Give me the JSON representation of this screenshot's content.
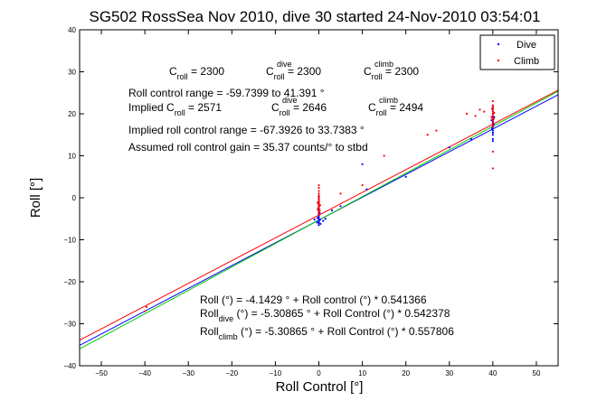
{
  "chart_data": {
    "type": "scatter",
    "title": "SG502 RossSea Nov 2010, dive 30 started 24-Nov-2010 03:54:01",
    "xlabel": "Roll Control [°]",
    "ylabel": "Roll [°]",
    "xlim": [
      -55,
      55
    ],
    "ylim": [
      -40,
      40
    ],
    "xticks": [
      -50,
      -40,
      -30,
      -20,
      -10,
      0,
      10,
      20,
      30,
      40,
      50
    ],
    "yticks": [
      -40,
      -30,
      -20,
      -10,
      0,
      10,
      20,
      30,
      40
    ],
    "grid": false,
    "legend_position": "top-right",
    "legend": [
      {
        "label": "Dive",
        "color": "#0000ff"
      },
      {
        "label": "Climb",
        "color": "#ff0000"
      }
    ],
    "series": [
      {
        "name": "Dive",
        "color": "#0000ff",
        "points": [
          [
            0,
            -6.5
          ],
          [
            0,
            -6
          ],
          [
            0,
            -5.8
          ],
          [
            0,
            -5.5
          ],
          [
            0,
            -5
          ],
          [
            0,
            -4.6
          ],
          [
            0,
            -4.2
          ],
          [
            0,
            -3.8
          ],
          [
            0,
            -3.4
          ],
          [
            0,
            -3
          ],
          [
            0,
            -2.5
          ],
          [
            0,
            -2
          ],
          [
            0,
            -1.5
          ],
          [
            0,
            -1
          ],
          [
            0,
            -0.4
          ],
          [
            0,
            0.2
          ],
          [
            0.3,
            -5.2
          ],
          [
            -0.3,
            -4.8
          ],
          [
            0.2,
            -3.6
          ],
          [
            -0.2,
            -2.8
          ],
          [
            0.4,
            -6.2
          ],
          [
            -0.4,
            -5.9
          ],
          [
            1,
            -5.5
          ],
          [
            1.5,
            -5
          ],
          [
            -1,
            -5.2
          ],
          [
            40,
            15
          ],
          [
            40,
            15.5
          ],
          [
            40,
            16
          ],
          [
            40,
            16.5
          ],
          [
            40,
            17
          ],
          [
            40,
            17.4
          ],
          [
            40,
            17.8
          ],
          [
            40,
            18.2
          ],
          [
            40,
            18.6
          ],
          [
            40,
            19
          ],
          [
            40,
            19.5
          ],
          [
            40,
            20
          ],
          [
            40,
            20.5
          ],
          [
            40,
            21
          ],
          [
            40,
            21.5
          ],
          [
            40,
            22
          ],
          [
            39.8,
            16.5
          ],
          [
            40.2,
            17.5
          ],
          [
            39.7,
            18.5
          ],
          [
            40.3,
            19.2
          ],
          [
            40,
            14
          ],
          [
            40,
            13.5
          ],
          [
            3,
            -3
          ],
          [
            5,
            -2
          ],
          [
            10,
            8
          ],
          [
            11,
            2
          ],
          [
            30,
            12
          ],
          [
            35,
            14
          ],
          [
            20,
            5
          ]
        ]
      },
      {
        "name": "Climb",
        "color": "#ff0000",
        "points": [
          [
            0,
            -4
          ],
          [
            0,
            -3.6
          ],
          [
            0,
            -3.2
          ],
          [
            0,
            -2.8
          ],
          [
            0,
            -2.4
          ],
          [
            0,
            -2
          ],
          [
            0,
            -1.6
          ],
          [
            0,
            -1.2
          ],
          [
            0,
            -0.8
          ],
          [
            0,
            -0.4
          ],
          [
            0,
            0
          ],
          [
            0,
            0.5
          ],
          [
            0,
            1
          ],
          [
            0,
            1.6
          ],
          [
            0,
            2.4
          ],
          [
            0,
            3
          ],
          [
            0.2,
            -3
          ],
          [
            -0.2,
            -2.5
          ],
          [
            0.3,
            -1.8
          ],
          [
            -0.3,
            -1.2
          ],
          [
            40,
            17
          ],
          [
            40,
            17.5
          ],
          [
            40,
            18
          ],
          [
            40,
            18.5
          ],
          [
            40,
            19
          ],
          [
            40,
            19.5
          ],
          [
            40,
            20
          ],
          [
            40,
            20.5
          ],
          [
            40,
            21
          ],
          [
            40,
            21.5
          ],
          [
            40,
            22
          ],
          [
            40,
            23
          ],
          [
            39.7,
            19.2
          ],
          [
            40.3,
            20.2
          ],
          [
            39.8,
            21.2
          ],
          [
            40.2,
            18.8
          ],
          [
            40,
            7
          ],
          [
            40,
            11
          ],
          [
            38,
            20.5
          ],
          [
            37,
            21
          ],
          [
            36,
            19.5
          ],
          [
            34,
            20
          ],
          [
            27,
            16
          ],
          [
            25,
            15
          ],
          [
            15,
            10
          ],
          [
            10,
            3
          ],
          [
            5,
            1
          ],
          [
            -40,
            -27
          ],
          [
            -39.6,
            -26
          ]
        ]
      }
    ],
    "fit_lines": [
      {
        "color": "#ff0000",
        "intercept": -4.1429,
        "slope": 0.541366
      },
      {
        "color": "#0000ff",
        "intercept": -5.30865,
        "slope": 0.542378
      },
      {
        "color": "#00cc00",
        "intercept": -5.30865,
        "slope": 0.557806
      }
    ],
    "annotations": {
      "line1": {
        "c_roll_prefix": "C",
        "c_roll_sub": "roll",
        "c_roll_value": " = 2300",
        "c_dive_prefix": "C",
        "c_dive_sup": "dive",
        "c_dive_sub": "roll",
        "c_dive_value": " = 2300",
        "c_climb_prefix": "C",
        "c_climb_sup": "climb",
        "c_climb_sub": "roll",
        "c_climb_value": " = 2300"
      },
      "range": "Roll control range = -59.7399 to 41.391 °",
      "implied": {
        "prefix": "Implied C",
        "sub": "roll",
        "value": " = 2571",
        "c_dive_prefix": "C",
        "c_dive_sup": "dive",
        "c_dive_sub": "roll",
        "c_dive_value": " = 2646",
        "c_climb_prefix": "C",
        "c_climb_sup": "climb",
        "c_climb_sub": "roll",
        "c_climb_value": " = 2494"
      },
      "implied_range": "Implied roll control range = -67.3926 to 33.7383 °",
      "gain": "Assumed roll control gain = 35.37 counts/° to stbd",
      "eq1": "Roll (°) = -4.1429 ° + Roll control (°) * 0.541366",
      "eq2": {
        "prefix": "Roll",
        "sub": "dive",
        "text": " (°) = -5.30865 ° + Roll Control (°) * 0.542378"
      },
      "eq3": {
        "prefix": "Roll",
        "sub": "climb",
        "text": " (°) = -5.30865 ° + Roll Control (°) * 0.557806"
      }
    }
  }
}
